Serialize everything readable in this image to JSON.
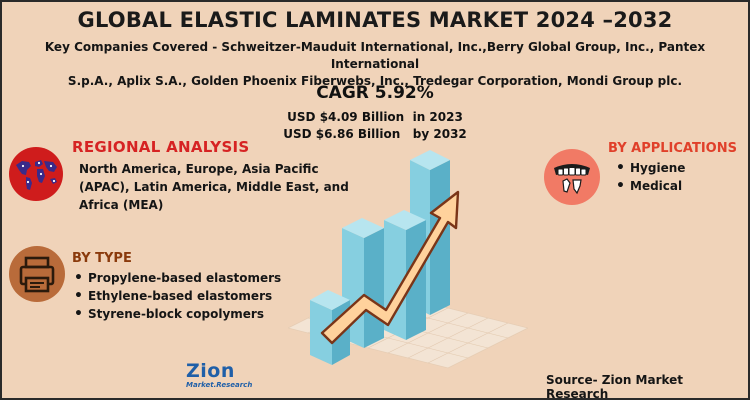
{
  "title": "GLOBAL ELASTIC LAMINATES MARKET 2024 –2032",
  "companies": {
    "line1": "Key Companies Covered - Schweitzer-Mauduit International, Inc.,Berry Global Group, Inc., Pantex International",
    "line2": "S.p.A., Aplix S.A., Golden Phoenix Fiberwebs, Inc., Tredegar Corporation, Mondi Group plc."
  },
  "cagr": "CAGR 5.92%",
  "market_size": [
    {
      "value": "USD $4.09 Billion",
      "year": "in 2023"
    },
    {
      "value": "USD $6.86 Billion",
      "year": "by 2032"
    }
  ],
  "regional": {
    "heading": "REGIONAL ANALYSIS",
    "text": "North America, Europe, Asia Pacific (APAC), Latin America, Middle East, and Africa (MEA)",
    "icon": "world-map-icon"
  },
  "type": {
    "heading": "BY TYPE",
    "items": [
      "Propylene-based elastomers",
      "Ethylene-based elastomers",
      "Styrene-block copolymers"
    ],
    "icon": "printer-icon"
  },
  "applications": {
    "heading": "BY APPLICATIONS",
    "items": [
      "Hygiene",
      "Medical"
    ],
    "icon": "dental-icon"
  },
  "logo": {
    "main": "Zion",
    "sub": "Market.Research"
  },
  "source": "Source- Zion Market Research",
  "colors": {
    "background": "#f0d3b9",
    "bar_front": "#86cfe0",
    "bar_side": "#5ab0c8",
    "bar_top": "#b7e5ef",
    "arrow": "#ffd29c",
    "region_accent": "#d62323",
    "type_icon_bg": "#b96b3a",
    "app_icon_bg": "#f17a65"
  }
}
